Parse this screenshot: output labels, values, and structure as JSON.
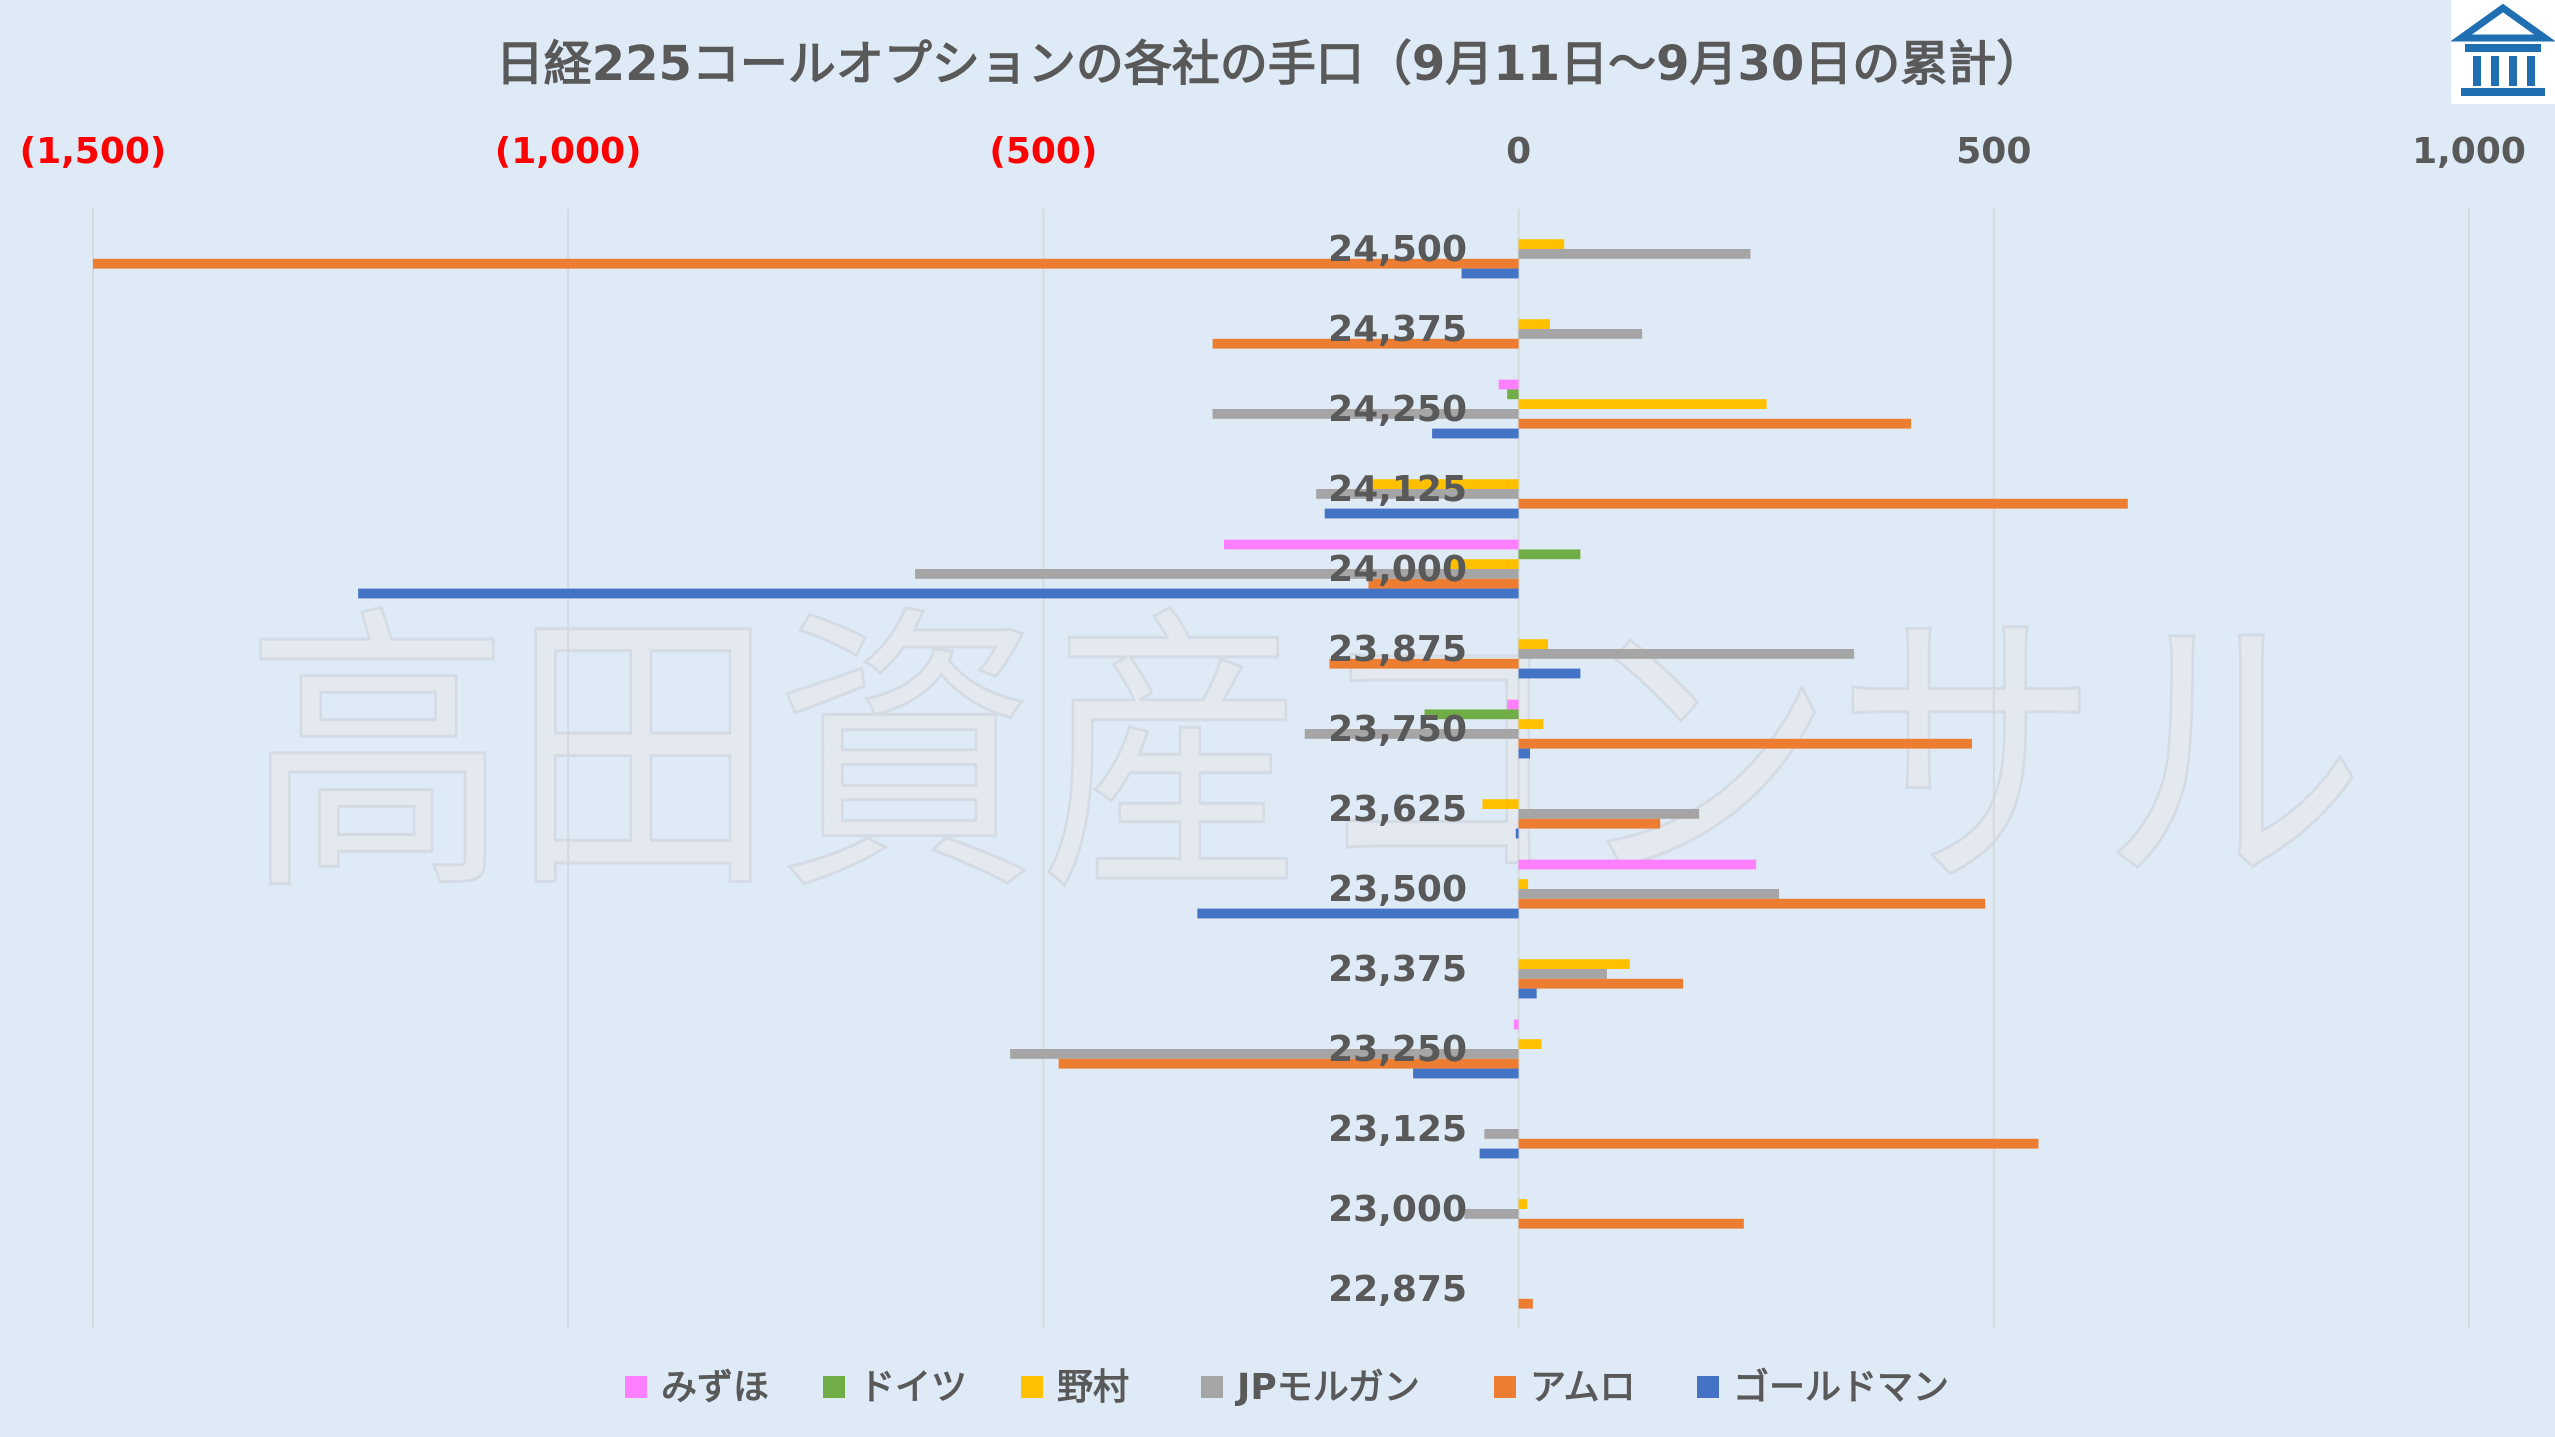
{
  "chart_data": {
    "type": "bar",
    "orientation": "horizontal",
    "title": "日経225コールオプションの各社の手口（9月11日～9月30日の累計）",
    "watermark": "高田資産コンサル",
    "xlim": [
      -1500,
      1000
    ],
    "xticks": [
      -1500,
      -1000,
      -500,
      0,
      500,
      1000
    ],
    "xtick_labels": [
      "(1,500)",
      "(1,000)",
      "(500)",
      "0",
      "500",
      "1,000"
    ],
    "negative_tick_color": "#FF0000",
    "positive_tick_color": "#595959",
    "grid": true,
    "legend_position": "bottom",
    "categories": [
      "24,500",
      "24,375",
      "24,250",
      "24,125",
      "24,000",
      "23,875",
      "23,750",
      "23,625",
      "23,500",
      "23,375",
      "23,250",
      "23,125",
      "23,000",
      "22,875"
    ],
    "series": [
      {
        "name": "みずほ",
        "color": "#FF80FF",
        "values": [
          0,
          0,
          -21,
          0,
          -310,
          0,
          -12,
          0,
          250,
          0,
          -5,
          0,
          0,
          0
        ]
      },
      {
        "name": "ドイツ",
        "color": "#70AD47",
        "values": [
          0,
          0,
          -12,
          0,
          65,
          0,
          -99,
          0,
          0,
          0,
          0,
          0,
          0,
          0
        ]
      },
      {
        "name": "野村",
        "color": "#FFC000",
        "values": [
          48,
          33,
          261,
          -160,
          -72,
          31,
          26,
          -38,
          10,
          117,
          24,
          0,
          9,
          0
        ]
      },
      {
        "name": "JPモルガン",
        "color": "#A5A5A5",
        "values": [
          244,
          130,
          -322,
          -213,
          -635,
          353,
          -225,
          190,
          274,
          93,
          -535,
          -36,
          -57,
          0
        ]
      },
      {
        "name": "アムロ",
        "color": "#ED7D31",
        "values": [
          -1500,
          -322,
          413,
          641,
          -158,
          -199,
          477,
          149,
          491,
          173,
          -484,
          547,
          237,
          15
        ]
      },
      {
        "name": "ゴールドマン",
        "color": "#4472C4",
        "values": [
          -60,
          0,
          -91,
          -204,
          -1221,
          65,
          12,
          -3,
          -338,
          19,
          -111,
          -41,
          0,
          0
        ]
      }
    ]
  },
  "logo": {
    "icon": "bank-building-icon",
    "color": "#1F6FB2"
  }
}
